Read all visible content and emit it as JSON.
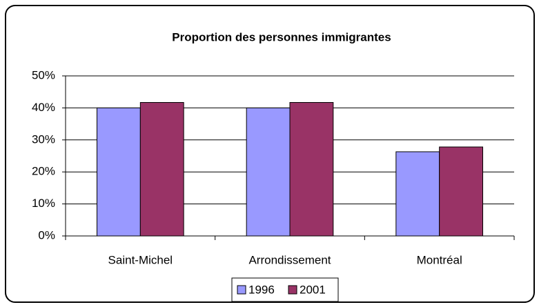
{
  "chart_data": {
    "type": "bar",
    "title": "Proportion des personnes immigrantes",
    "categories": [
      "Saint-Michel",
      "Arrondissement",
      "Montréal"
    ],
    "series": [
      {
        "name": "1996",
        "color": "#9999ff",
        "values": [
          40,
          40,
          26.3
        ]
      },
      {
        "name": "2001",
        "color": "#993366",
        "values": [
          41.7,
          41.7,
          27.8
        ]
      }
    ],
    "ylim": [
      0,
      50
    ],
    "yticks": [
      {
        "value": 0,
        "label": "0%"
      },
      {
        "value": 10,
        "label": "10%"
      },
      {
        "value": 20,
        "label": "20%"
      },
      {
        "value": 30,
        "label": "30%"
      },
      {
        "value": 40,
        "label": "40%"
      },
      {
        "value": 50,
        "label": "50%"
      }
    ],
    "grid": true,
    "legend": "bottom"
  }
}
